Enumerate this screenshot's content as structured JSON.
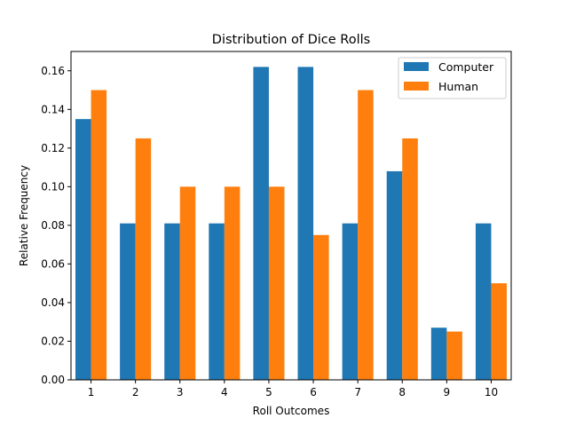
{
  "chart_data": {
    "type": "bar",
    "title": "Distribution of Dice Rolls",
    "xlabel": "Roll Outcomes",
    "ylabel": "Relative Frequency",
    "categories": [
      "1",
      "2",
      "3",
      "4",
      "5",
      "6",
      "7",
      "8",
      "9",
      "10"
    ],
    "series": [
      {
        "name": "Computer",
        "color": "#1f77b4",
        "values": [
          0.135,
          0.081,
          0.081,
          0.081,
          0.162,
          0.162,
          0.081,
          0.108,
          0.027,
          0.081
        ]
      },
      {
        "name": "Human",
        "color": "#ff7f0e",
        "values": [
          0.15,
          0.125,
          0.1,
          0.1,
          0.1,
          0.075,
          0.15,
          0.125,
          0.025,
          0.05
        ]
      }
    ],
    "ylim": [
      0,
      0.17
    ],
    "yticks": [
      "0.00",
      "0.02",
      "0.04",
      "0.06",
      "0.08",
      "0.10",
      "0.12",
      "0.14",
      "0.16"
    ],
    "grid": false,
    "legend_position": "top-right"
  }
}
